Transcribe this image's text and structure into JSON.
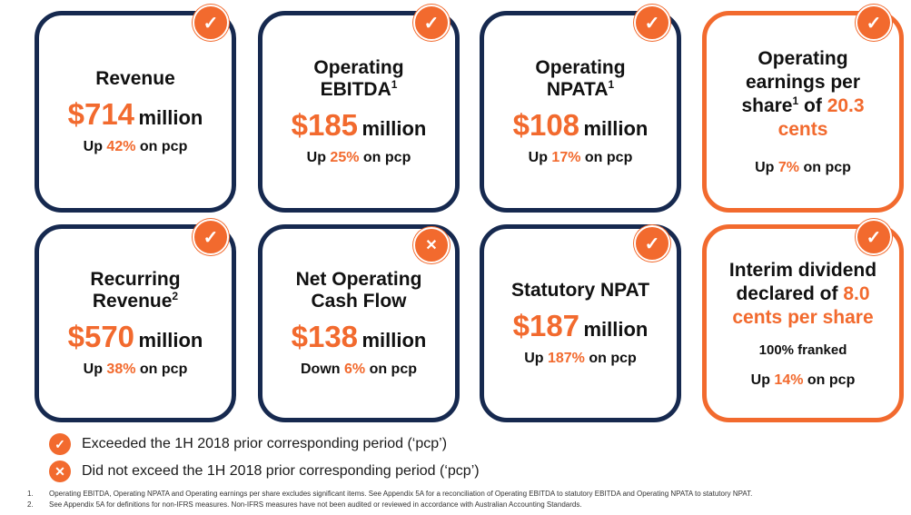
{
  "cards": [
    {
      "title": "Revenue",
      "amount": "$714",
      "unit": "million",
      "change_prefix": "Up",
      "change_pct": "42%",
      "change_suffix": "on pcp",
      "badge": "check-icon"
    },
    {
      "title_line1": "Operating",
      "title_line2": "EBITDA",
      "sup": "1",
      "amount": "$185",
      "unit": "million",
      "change_prefix": "Up",
      "change_pct": "25%",
      "change_suffix": "on pcp",
      "badge": "check-icon"
    },
    {
      "title_line1": "Operating",
      "title_line2": "NPATA",
      "sup": "1",
      "amount": "$108",
      "unit": "million",
      "change_prefix": "Up",
      "change_pct": "17%",
      "change_suffix": "on pcp",
      "badge": "check-icon"
    },
    {
      "line1": "Operating",
      "line2": "earnings per",
      "line3a": "share",
      "sup": "1",
      "line3b": "of",
      "value": "20.3",
      "line4": "cents",
      "change_prefix": "Up",
      "change_pct": "7%",
      "change_suffix": "on pcp",
      "badge": "check-icon"
    },
    {
      "title_line1": "Recurring",
      "title_line2": "Revenue",
      "sup": "2",
      "amount": "$570",
      "unit": "million",
      "change_prefix": "Up",
      "change_pct": "38%",
      "change_suffix": "on pcp",
      "badge": "check-icon"
    },
    {
      "title_line1": "Net Operating",
      "title_line2": "Cash Flow",
      "amount": "$138",
      "unit": "million",
      "change_prefix": "Down",
      "change_pct": "6%",
      "change_suffix": "on pcp",
      "badge": "cross-icon"
    },
    {
      "title": "Statutory NPAT",
      "amount": "$187",
      "unit": "million",
      "change_prefix": "Up",
      "change_pct": "187%",
      "change_suffix": "on pcp",
      "badge": "check-icon"
    },
    {
      "line1": "Interim dividend",
      "line2a": "declared of",
      "value": "8.0",
      "line3": "cents per share",
      "note": "100% franked",
      "change_prefix": "Up",
      "change_pct": "14%",
      "change_suffix": "on pcp",
      "badge": "check-icon"
    }
  ],
  "badges": {
    "check": "✓",
    "cross": "✕"
  },
  "legend": [
    {
      "icon": "✓",
      "text": "Exceeded the 1H 2018 prior corresponding period (‘pcp’)"
    },
    {
      "icon": "✕",
      "text": "Did not exceed the 1H 2018 prior corresponding period (‘pcp’)"
    }
  ],
  "footnotes": [
    {
      "num": "1.",
      "text": "Operating EBITDA, Operating NPATA and Operating earnings per share excludes significant items.  See Appendix 5A for a reconciliation of Operating EBITDA to statutory EBITDA and Operating NPATA to statutory NPAT."
    },
    {
      "num": "2.",
      "text": "See Appendix 5A for definitions for non-IFRS measures. Non-IFRS measures have not been audited or reviewed in accordance with Australian Accounting Standards."
    }
  ],
  "colors": {
    "navy": "#16294f",
    "orange": "#f26a2e"
  }
}
